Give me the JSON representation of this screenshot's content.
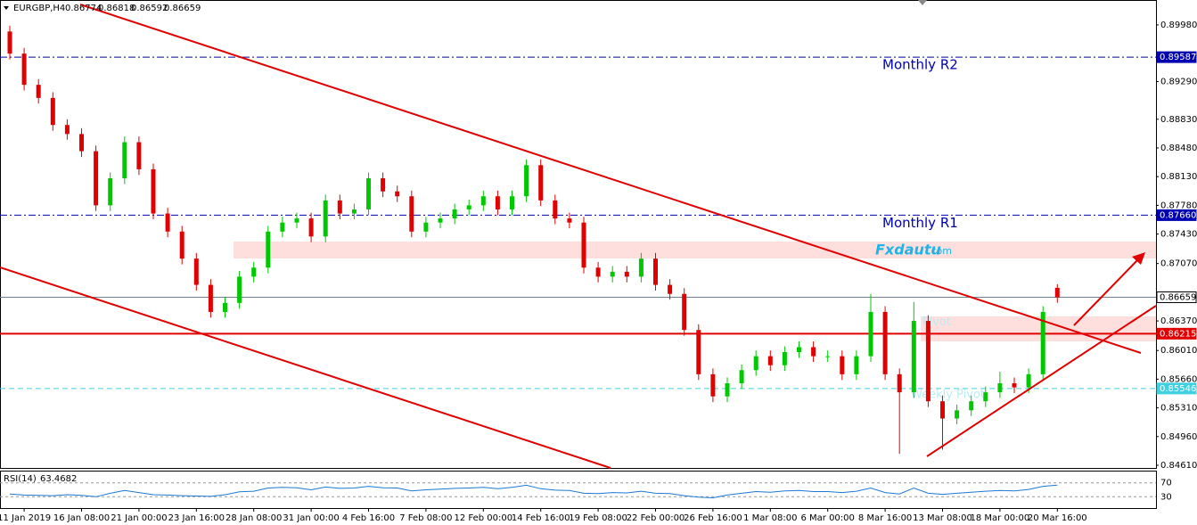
{
  "chart_data": {
    "type": "candlestick",
    "symbol": "EURGBP,H4",
    "categories": [
      null,
      "11 Jan 2019",
      null,
      null,
      null,
      "16 Jan 08:00",
      null,
      null,
      null,
      "21 Jan 00:00",
      null,
      null,
      null,
      "23 Jan 16:00",
      null,
      null,
      null,
      "28 Jan 08:00",
      null,
      null,
      null,
      "31 Jan 00:00",
      null,
      null,
      null,
      "4 Feb 16:00",
      null,
      null,
      null,
      "7 Feb 08:00",
      null,
      null,
      null,
      "12 Feb 00:00",
      null,
      null,
      null,
      "14 Feb 16:00",
      null,
      null,
      null,
      "19 Feb 08:00",
      null,
      null,
      null,
      "22 Feb 00:00",
      null,
      null,
      null,
      "26 Feb 16:00",
      null,
      null,
      null,
      "1 Mar 08:00",
      null,
      null,
      null,
      "6 Mar 00:00",
      null,
      null,
      null,
      "8 Mar 16:00",
      null,
      null,
      null,
      "13 Mar 08:00",
      null,
      null,
      null,
      "18 Mar 00:00",
      null,
      null,
      null,
      "20 Mar 16:00"
    ],
    "open": [
      0.899,
      0.8963,
      0.8925,
      0.8909,
      0.8876,
      0.8865,
      0.8844,
      0.8778,
      0.8811,
      0.8855,
      0.8822,
      0.8768,
      0.8746,
      0.8713,
      0.8681,
      0.8648,
      0.8659,
      0.8691,
      0.8702,
      0.8746,
      0.8757,
      0.8762,
      0.874,
      0.8784,
      0.8768,
      0.8773,
      0.8811,
      0.8795,
      0.8789,
      0.8746,
      0.8757,
      0.8762,
      0.8773,
      0.8778,
      0.8789,
      0.8773,
      0.8789,
      0.8827,
      0.8784,
      0.8762,
      0.8757,
      0.8702,
      0.8691,
      0.8697,
      0.8691,
      0.8713,
      0.8681,
      0.867,
      0.8626,
      0.8572,
      0.8545,
      0.8561,
      0.8577,
      0.8594,
      0.8583,
      0.8599,
      0.8605,
      0.8594,
      0.8594,
      0.8572,
      0.8594,
      0.8648,
      0.8572,
      0.855,
      0.8637,
      0.8539,
      0.8518,
      0.8528,
      0.8539,
      0.855,
      0.8561,
      0.8556,
      0.8572,
      0.86774
    ],
    "high": [
      0.8997,
      0.897,
      0.8932,
      0.8916,
      0.8883,
      0.8872,
      0.8851,
      0.8818,
      0.8862,
      0.8862,
      0.8829,
      0.8775,
      0.8753,
      0.872,
      0.8688,
      0.8666,
      0.8698,
      0.8709,
      0.8753,
      0.8764,
      0.8769,
      0.8769,
      0.8791,
      0.8791,
      0.878,
      0.8818,
      0.8818,
      0.8802,
      0.8796,
      0.8764,
      0.8769,
      0.878,
      0.8785,
      0.8796,
      0.8796,
      0.8796,
      0.8834,
      0.8834,
      0.8791,
      0.8769,
      0.8764,
      0.8709,
      0.8704,
      0.8704,
      0.872,
      0.872,
      0.8688,
      0.8677,
      0.8633,
      0.8579,
      0.8568,
      0.8584,
      0.8601,
      0.8601,
      0.8606,
      0.8612,
      0.8612,
      0.8601,
      0.8601,
      0.8601,
      0.867,
      0.8655,
      0.8579,
      0.866,
      0.8644,
      0.8546,
      0.8535,
      0.8546,
      0.8557,
      0.8575,
      0.8568,
      0.8579,
      0.8655,
      0.86818
    ],
    "low": [
      0.8956,
      0.8918,
      0.8902,
      0.8869,
      0.8858,
      0.8837,
      0.8771,
      0.8771,
      0.8804,
      0.8815,
      0.8761,
      0.8739,
      0.8706,
      0.8674,
      0.8641,
      0.8641,
      0.8652,
      0.8684,
      0.8695,
      0.8739,
      0.875,
      0.8733,
      0.8733,
      0.8761,
      0.8761,
      0.8766,
      0.8788,
      0.8782,
      0.8739,
      0.8739,
      0.875,
      0.8755,
      0.8766,
      0.8771,
      0.8766,
      0.8766,
      0.8782,
      0.8777,
      0.8755,
      0.875,
      0.8695,
      0.8684,
      0.8684,
      0.8684,
      0.8684,
      0.8674,
      0.8663,
      0.8619,
      0.8565,
      0.8538,
      0.8538,
      0.8554,
      0.857,
      0.8576,
      0.8576,
      0.8592,
      0.8587,
      0.8587,
      0.8565,
      0.8565,
      0.8587,
      0.8565,
      0.8475,
      0.8543,
      0.8532,
      0.848,
      0.8511,
      0.8521,
      0.8532,
      0.8543,
      0.8549,
      0.8549,
      0.8565,
      0.86592
    ],
    "close": [
      0.8963,
      0.8925,
      0.8909,
      0.8876,
      0.8865,
      0.8844,
      0.8778,
      0.8811,
      0.8855,
      0.8822,
      0.8768,
      0.8746,
      0.8713,
      0.8681,
      0.8648,
      0.8659,
      0.8691,
      0.8702,
      0.8746,
      0.8757,
      0.8762,
      0.874,
      0.8784,
      0.8768,
      0.8773,
      0.8811,
      0.8795,
      0.8789,
      0.8746,
      0.8757,
      0.8762,
      0.8773,
      0.8778,
      0.8789,
      0.8773,
      0.8789,
      0.8827,
      0.8784,
      0.8762,
      0.8757,
      0.8702,
      0.8691,
      0.8697,
      0.8691,
      0.8713,
      0.8681,
      0.867,
      0.8626,
      0.8572,
      0.8545,
      0.8561,
      0.8577,
      0.8594,
      0.8583,
      0.8599,
      0.8605,
      0.8594,
      0.8594,
      0.8572,
      0.8594,
      0.8648,
      0.8572,
      0.855,
      0.8637,
      0.8539,
      0.8518,
      0.8528,
      0.8539,
      0.855,
      0.8561,
      0.8556,
      0.8572,
      0.8648,
      0.86659
    ],
    "up_color": "#00c800",
    "down_color": "#e00000",
    "ylim": [
      0.84577,
      0.90132
    ],
    "yticks": [
      {
        "value": 0.8998,
        "label": "0.89980"
      },
      {
        "value": 0.8929,
        "label": "0.89290"
      },
      {
        "value": 0.8883,
        "label": "0.88830"
      },
      {
        "value": 0.8848,
        "label": "0.88480"
      },
      {
        "value": 0.8813,
        "label": "0.88130"
      },
      {
        "value": 0.8778,
        "label": "0.87780"
      },
      {
        "value": 0.8743,
        "label": "0.87430"
      },
      {
        "value": 0.8707,
        "label": "0.87070"
      },
      {
        "value": 0.8637,
        "label": "0.86370"
      },
      {
        "value": 0.8601,
        "label": "0.86010"
      },
      {
        "value": 0.8566,
        "label": "0.85660"
      },
      {
        "value": 0.8531,
        "label": "0.85310"
      },
      {
        "value": 0.8496,
        "label": "0.84960"
      },
      {
        "value": 0.8461,
        "label": "0.84610"
      }
    ],
    "levels": [
      {
        "name": "Monthly R2",
        "value": 0.89587,
        "label": "0.89587",
        "color": "#0000b0",
        "style": "dashdot"
      },
      {
        "name": "Monthly R1",
        "value": 0.8766,
        "label": "0.87660",
        "color": "#0000b0",
        "style": "dashdot"
      },
      {
        "value": 0.86659,
        "label": "0.86659",
        "color": "#708090",
        "style": "solid"
      },
      {
        "name": "Pivot",
        "value": 0.86215,
        "label": "0.86215",
        "color": "#e00000",
        "style": "solid"
      },
      {
        "name": "Weekly Pivot",
        "value": 0.85546,
        "label": "0.85546",
        "color": "#40d0e0",
        "style": "dashed"
      }
    ],
    "watermark": {
      "brand": "Fxdautu",
      "domain": ".com"
    },
    "rsi": {
      "name": "RSI(14)",
      "color": "#1e78d2",
      "ylim": [
        0,
        100
      ],
      "yticks": [
        70,
        30
      ],
      "values": [
        38,
        35,
        34,
        33,
        36,
        34,
        30,
        40,
        48,
        42,
        36,
        35,
        33,
        32,
        31,
        36,
        44,
        46,
        55,
        57,
        56,
        50,
        58,
        54,
        55,
        60,
        56,
        55,
        47,
        50,
        52,
        54,
        55,
        57,
        53,
        57,
        63,
        53,
        49,
        48,
        40,
        39,
        42,
        41,
        46,
        40,
        39,
        33,
        29,
        27,
        35,
        40,
        45,
        43,
        47,
        48,
        45,
        45,
        42,
        46,
        55,
        42,
        38,
        55,
        40,
        37,
        40,
        43,
        46,
        48,
        47,
        51,
        60,
        63.4682
      ]
    }
  }
}
